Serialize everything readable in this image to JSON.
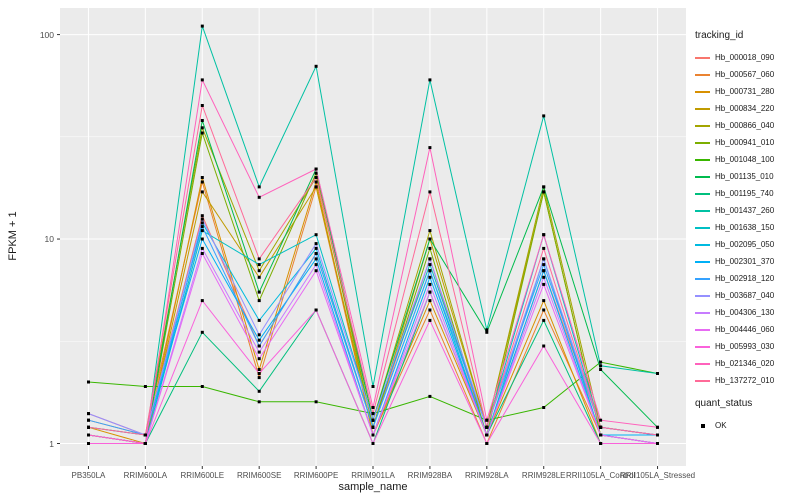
{
  "chart_data": {
    "type": "line",
    "title": "",
    "xlabel": "sample_name",
    "ylabel": "FPKM + 1",
    "y_scale": "log10",
    "panel_bg": "#EBEBEB",
    "grid_color": "#FFFFFF",
    "axis_text_color": "#4D4D4D",
    "point_color": "#000000",
    "ylim_log10": [
      -0.11,
      2.13
    ],
    "y_ticks": [
      1,
      10,
      100
    ],
    "y_tick_labels": [
      "1",
      "10",
      "100"
    ],
    "y_minor_ticks": [
      3.1623,
      31.623
    ],
    "grid": "on",
    "legend_position": "right",
    "categories": [
      "PB350LA",
      "RRIM600LA",
      "RRIM600LE",
      "RRIM600SE",
      "RRIM600PE",
      "RRIM901LA",
      "RRIM928BA",
      "RRIM928LA",
      "RRIM928LE",
      "RRII105LA_Control",
      "RRII105LA_Stressed"
    ],
    "legend": {
      "title": "tracking_id"
    },
    "legend2": {
      "title": "quant_status",
      "items": [
        "OK"
      ]
    },
    "series": [
      {
        "name": "Hb_000018_090",
        "color": "#F8766D",
        "values": [
          1.4,
          1.1,
          13,
          3.0,
          8.5,
          1.2,
          8,
          1.1,
          7,
          1.2,
          1.1
        ]
      },
      {
        "name": "Hb_000567_060",
        "color": "#EA8331",
        "values": [
          1.3,
          1.1,
          19,
          2.1,
          18,
          1.1,
          4.5,
          1.0,
          4.5,
          1.1,
          1.0
        ]
      },
      {
        "name": "Hb_000731_280",
        "color": "#D89000",
        "values": [
          1.2,
          1.0,
          20,
          2.3,
          19,
          1.1,
          5,
          1.1,
          5,
          1.0,
          1.0
        ]
      },
      {
        "name": "Hb_000834_220",
        "color": "#C09B00",
        "values": [
          1.1,
          1.0,
          17,
          6.5,
          18,
          1.2,
          10,
          1.2,
          17,
          1.1,
          1.1
        ]
      },
      {
        "name": "Hb_000866_040",
        "color": "#A3A500",
        "values": [
          1.2,
          1.1,
          35,
          7,
          20,
          1.3,
          11,
          1.2,
          18,
          1.2,
          1.1
        ]
      },
      {
        "name": "Hb_000941_010",
        "color": "#7CAE00",
        "values": [
          1.1,
          1.0,
          33,
          5,
          21,
          1.2,
          9,
          1.1,
          17,
          1.1,
          1.0
        ]
      },
      {
        "name": "Hb_001048_100",
        "color": "#39B600",
        "values": [
          2.0,
          1.9,
          1.9,
          1.6,
          1.6,
          1.4,
          1.7,
          1.3,
          1.5,
          2.5,
          2.2
        ]
      },
      {
        "name": "Hb_001135_010",
        "color": "#00BB4E",
        "values": [
          1.1,
          1.0,
          38,
          5.5,
          22,
          1.3,
          10,
          3.5,
          18,
          2.3,
          1.2
        ]
      },
      {
        "name": "Hb_001195_740",
        "color": "#00BF7D",
        "values": [
          1.0,
          1.0,
          3.5,
          1.8,
          4.5,
          1.0,
          5.5,
          1.1,
          4,
          1.0,
          1.0
        ]
      },
      {
        "name": "Hb_001437_260",
        "color": "#00C1A3",
        "values": [
          1.0,
          1.0,
          110,
          18,
          70,
          1.9,
          60,
          3.6,
          40,
          2.4,
          2.2
        ]
      },
      {
        "name": "Hb_001638_150",
        "color": "#00BFC4",
        "values": [
          1.1,
          1.0,
          11,
          7.5,
          10.5,
          1.3,
          7.5,
          1.2,
          10.5,
          1.2,
          1.1
        ]
      },
      {
        "name": "Hb_002095_050",
        "color": "#00BAE0",
        "values": [
          1.1,
          1.0,
          12,
          4,
          9,
          1.2,
          7,
          1.1,
          8,
          1.1,
          1.0
        ]
      },
      {
        "name": "Hb_002301_370",
        "color": "#00B0F6",
        "values": [
          1.2,
          1.1,
          10,
          3.2,
          8,
          1.1,
          6.5,
          1.1,
          7,
          1.1,
          1.1
        ]
      },
      {
        "name": "Hb_002918_120",
        "color": "#35A2FF",
        "values": [
          1.3,
          1.1,
          11.5,
          3.0,
          8.5,
          1.2,
          7,
          1.2,
          7.5,
          1.2,
          1.1
        ]
      },
      {
        "name": "Hb_003687_040",
        "color": "#9590FF",
        "values": [
          1.4,
          1.1,
          12.5,
          3.4,
          9.5,
          1.3,
          8,
          1.2,
          8,
          1.2,
          1.1
        ]
      },
      {
        "name": "Hb_004306_130",
        "color": "#C77CFF",
        "values": [
          1.1,
          1.0,
          9,
          2.8,
          7.5,
          1.1,
          6,
          1.1,
          6.5,
          1.1,
          1.0
        ]
      },
      {
        "name": "Hb_004446_060",
        "color": "#E76BF3",
        "values": [
          1.1,
          1.0,
          8.5,
          2.6,
          7,
          1.1,
          5.5,
          1.1,
          6,
          1.1,
          1.0
        ]
      },
      {
        "name": "Hb_005993_030",
        "color": "#FA62DB",
        "values": [
          1.0,
          1.0,
          5,
          2.2,
          4.5,
          1.0,
          4,
          1.0,
          3,
          1.0,
          1.0
        ]
      },
      {
        "name": "Hb_021346_020",
        "color": "#FF62BC",
        "values": [
          1.1,
          1.0,
          60,
          16,
          22,
          1.5,
          28,
          1.3,
          10.5,
          1.3,
          1.2
        ]
      },
      {
        "name": "Hb_137272_010",
        "color": "#FF6A98",
        "values": [
          1.2,
          1.1,
          45,
          8,
          20,
          1.4,
          17,
          1.2,
          9,
          1.2,
          1.1
        ]
      }
    ]
  }
}
